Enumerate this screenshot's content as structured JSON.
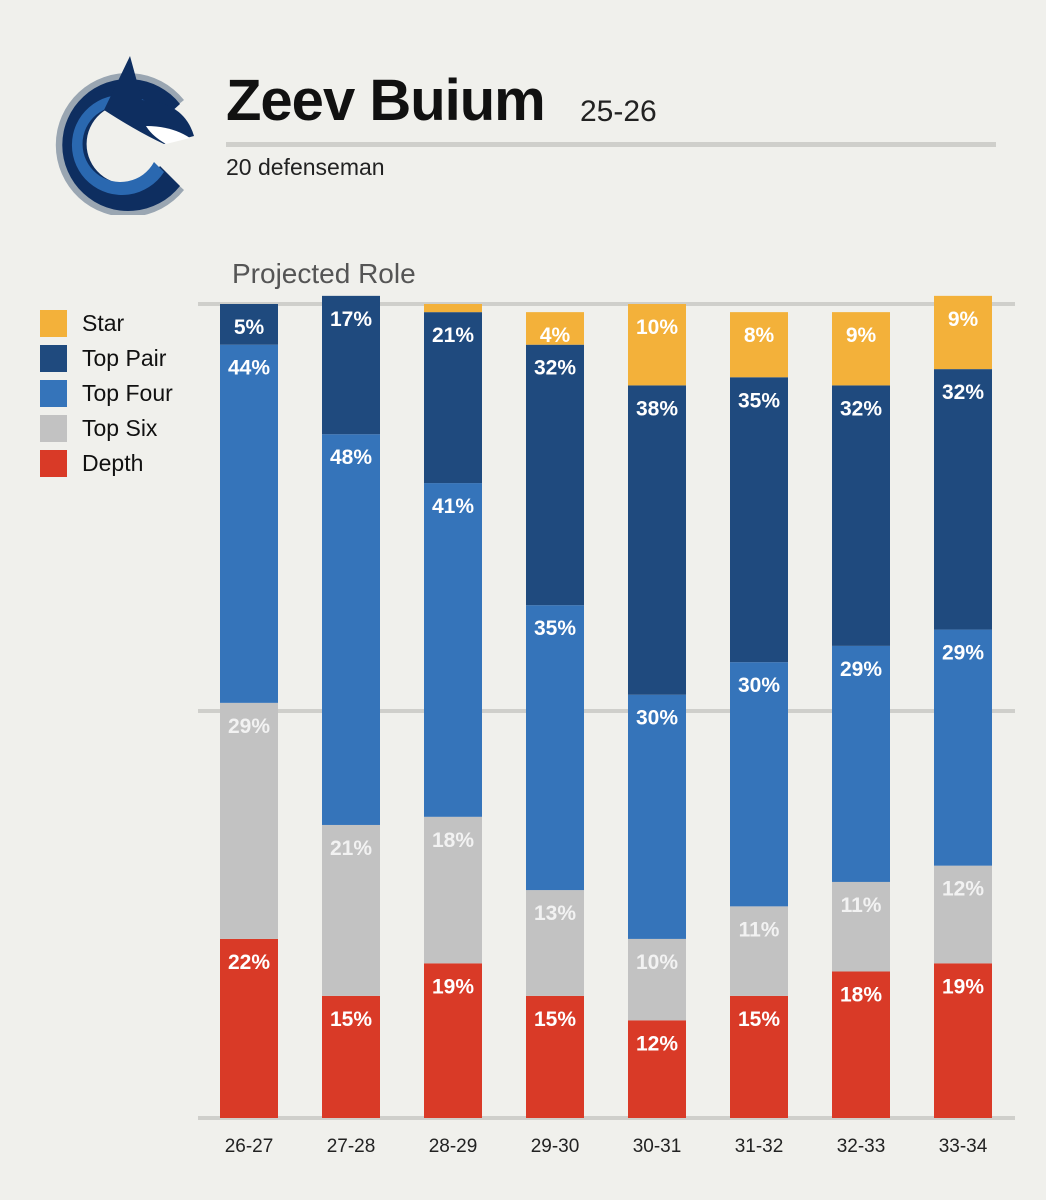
{
  "header": {
    "name": "Zeev Buium",
    "season": "25-26",
    "description": "20 defenseman"
  },
  "logo": {
    "icon": "orca-c-logo",
    "colors": [
      "#0a2b5c",
      "#1d5ba6",
      "#8a9aa8"
    ]
  },
  "chart_data": {
    "type": "bar",
    "stacked": true,
    "title": "Projected Role",
    "categories": [
      "26-27",
      "27-28",
      "28-29",
      "29-30",
      "30-31",
      "31-32",
      "32-33",
      "33-34"
    ],
    "series": [
      {
        "name": "Star",
        "color": "#f3b13a",
        "values": [
          0,
          0,
          1,
          4,
          10,
          8,
          9,
          9
        ],
        "labels": [
          "",
          "",
          "",
          "4%",
          "10%",
          "8%",
          "9%",
          "9%"
        ]
      },
      {
        "name": "Top Pair",
        "color": "#1f4a7e",
        "values": [
          5,
          17,
          21,
          32,
          38,
          35,
          32,
          32
        ],
        "labels": [
          "5%",
          "17%",
          "21%",
          "32%",
          "38%",
          "35%",
          "32%",
          "32%"
        ]
      },
      {
        "name": "Top Four",
        "color": "#3574ba",
        "values": [
          44,
          48,
          41,
          35,
          30,
          30,
          29,
          29
        ],
        "labels": [
          "44%",
          "48%",
          "41%",
          "35%",
          "30%",
          "30%",
          "29%",
          "29%"
        ]
      },
      {
        "name": "Top Six",
        "color": "#c2c2c2",
        "values": [
          29,
          21,
          18,
          13,
          10,
          11,
          11,
          12
        ],
        "labels": [
          "29%",
          "21%",
          "18%",
          "13%",
          "10%",
          "11%",
          "11%",
          "12%"
        ]
      },
      {
        "name": "Depth",
        "color": "#d93a27",
        "values": [
          22,
          15,
          19,
          15,
          12,
          15,
          18,
          19
        ],
        "labels": [
          "22%",
          "15%",
          "19%",
          "15%",
          "12%",
          "15%",
          "18%",
          "19%"
        ]
      }
    ],
    "ylim": [
      0,
      100
    ],
    "gridlines": [
      0,
      50,
      100
    ],
    "legend": "left"
  }
}
